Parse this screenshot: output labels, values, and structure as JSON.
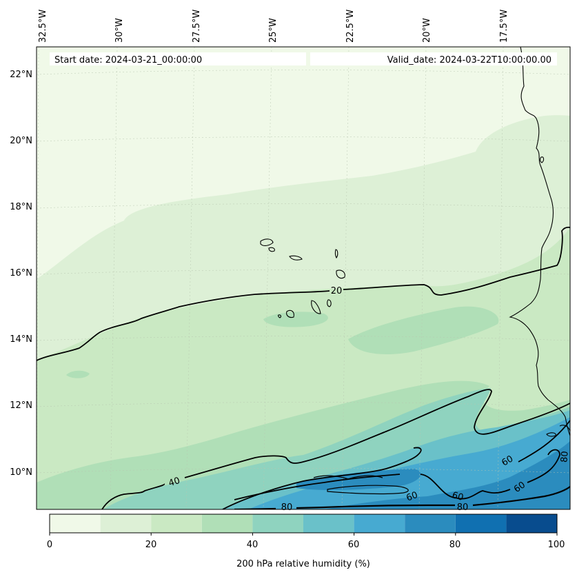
{
  "header": {
    "start_label": "Start date: 2024-03-21_00:00:00",
    "valid_label": "Valid_date: 2024-03-22T10:00:00.00"
  },
  "lon_labels": [
    "32.5°W",
    "30°W",
    "27.5°W",
    "25°W",
    "22.5°W",
    "20°W",
    "17.5°W"
  ],
  "lat_labels": [
    "22°N",
    "20°N",
    "18°N",
    "16°N",
    "14°N",
    "12°N",
    "10°N"
  ],
  "contour_labels": [
    "20",
    "40",
    "60",
    "60",
    "60",
    "60",
    "80",
    "80",
    "80"
  ],
  "colorbar": {
    "label": "200 hPa relative humidity (%)",
    "ticks": [
      "0",
      "20",
      "40",
      "60",
      "80",
      "100"
    ],
    "levels": [
      0,
      10,
      20,
      30,
      40,
      50,
      60,
      70,
      80,
      90,
      100
    ],
    "colors": [
      "#f0f9e8",
      "#ddf0d6",
      "#cae9c3",
      "#b0dfb7",
      "#8fd3bf",
      "#6ac1c9",
      "#47aad1",
      "#2b8cbe",
      "#1070b1",
      "#084c8e"
    ]
  },
  "colors": {
    "coast": "#000000",
    "contour": "#000000",
    "grid": "#b8c6b0"
  }
}
